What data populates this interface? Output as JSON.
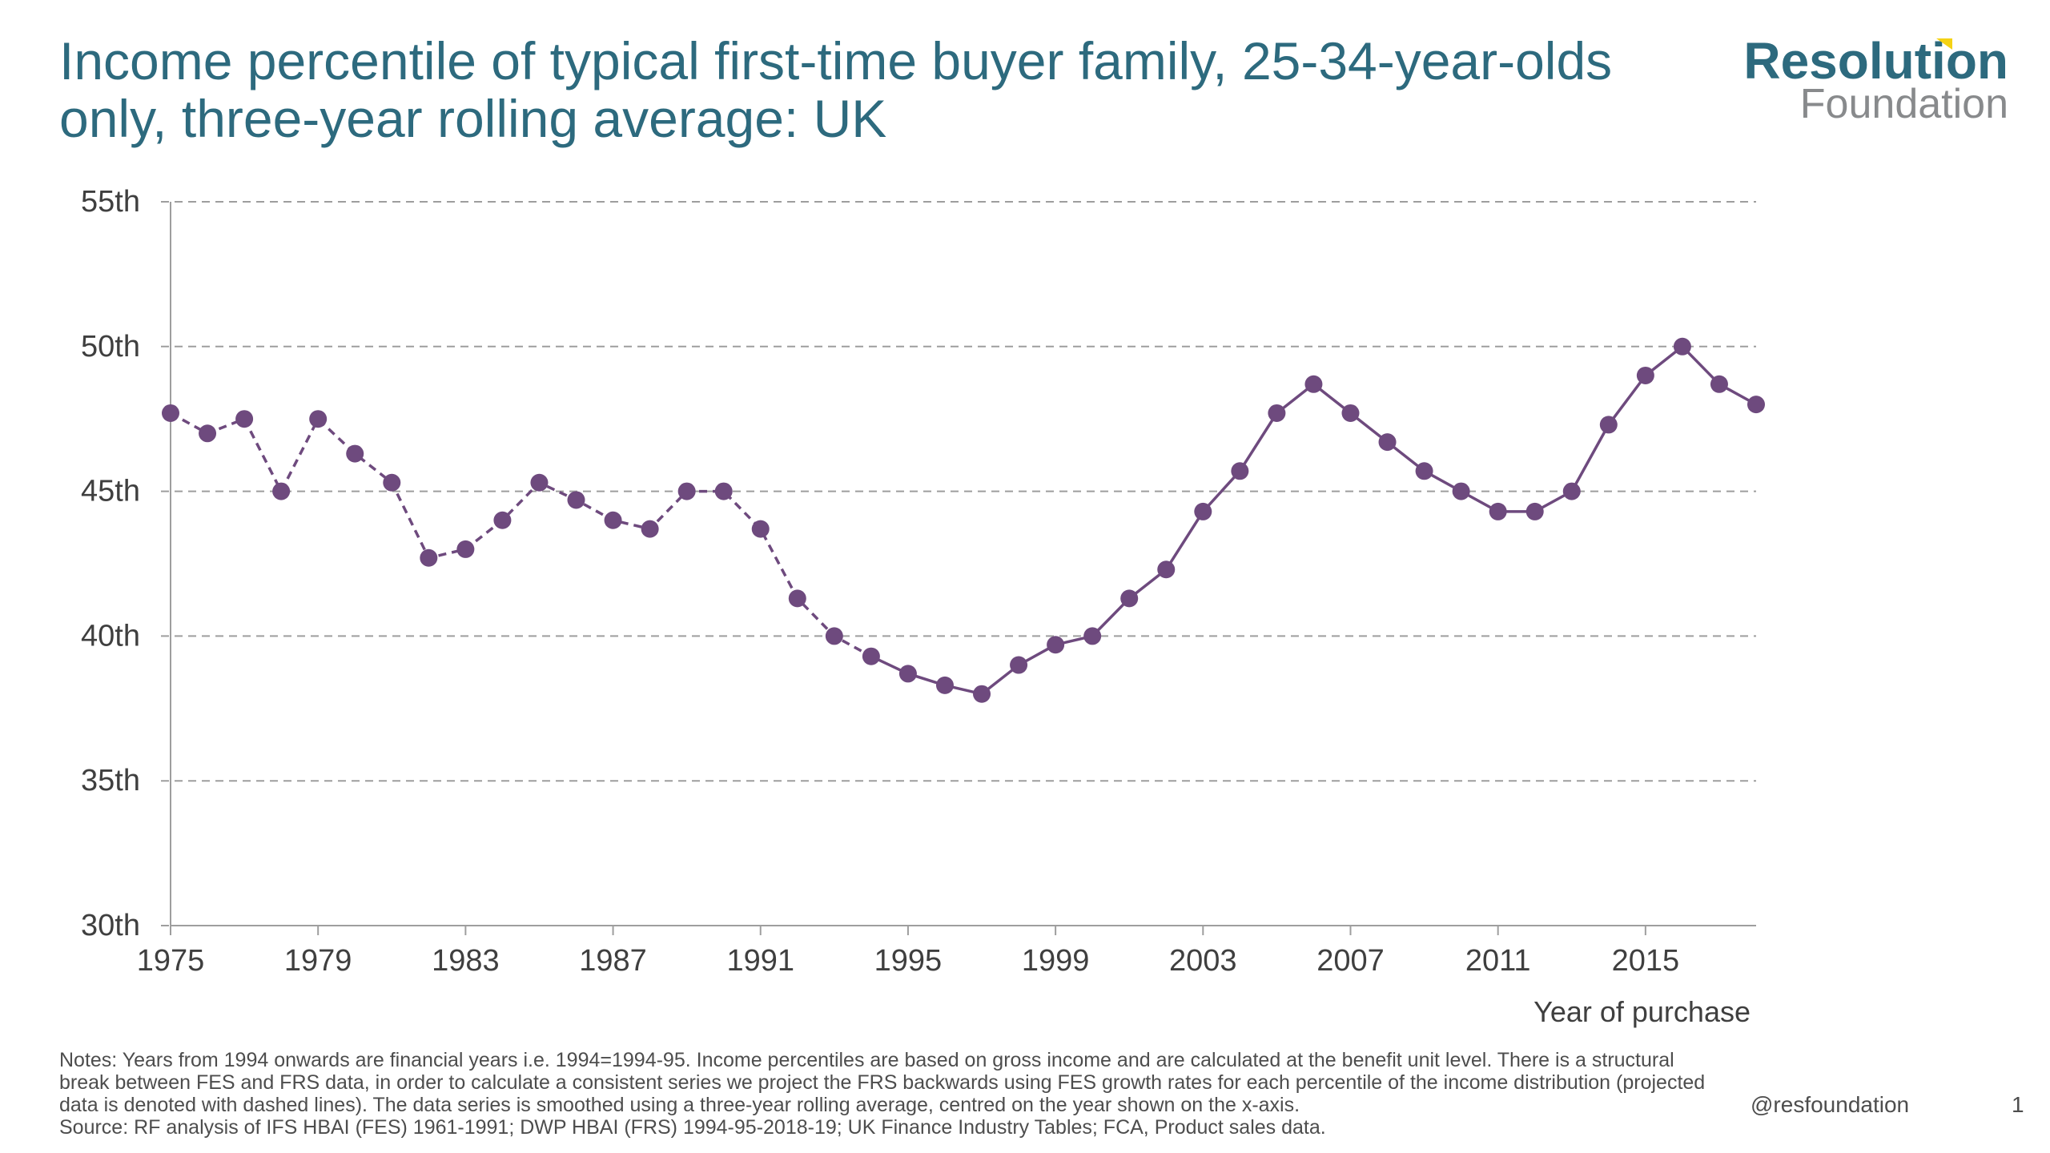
{
  "header": {
    "title": "Income percentile of typical first-time buyer family, 25-34-year-olds only, three-year rolling average: UK"
  },
  "logo": {
    "line1": "Resolution",
    "line2": "Foundation",
    "accent_color": "#f5d214",
    "brand_color": "#2d6a7e"
  },
  "footer": {
    "notes": "Notes: Years from 1994 onwards are financial years i.e. 1994=1994-95. Income percentiles are based on gross income and are calculated at the benefit unit level. There is a structural break between FES and FRS data, in order to calculate a consistent series we project the FRS backwards using FES growth rates for each percentile of the income distribution (projected data is denoted with dashed lines). The data series is smoothed using a three-year rolling average, centred on the year shown on the x-axis.",
    "source": "Source: RF analysis of IFS HBAI (FES) 1961-1991; DWP HBAI (FRS) 1994-95-2018-19; UK Finance Industry Tables; FCA, Product sales data.",
    "handle": "@resfoundation",
    "page_number": "1"
  },
  "chart_data": {
    "type": "line",
    "title": "Income percentile of typical first-time buyer family, 25-34-year-olds only, three-year rolling average: UK",
    "xlabel": "Year of purchase",
    "ylabel": "",
    "xlim": [
      1975,
      2018
    ],
    "ylim": [
      30,
      55
    ],
    "x_ticks": [
      1975,
      1979,
      1983,
      1987,
      1991,
      1995,
      1999,
      2003,
      2007,
      2011,
      2015
    ],
    "x_tick_labels": [
      "1975",
      "1979",
      "1983",
      "1987",
      "1991",
      "1995",
      "1999",
      "2003",
      "2007",
      "2011",
      "2015"
    ],
    "y_ticks": [
      30,
      35,
      40,
      45,
      50,
      55
    ],
    "y_tick_labels": [
      "30th",
      "35th",
      "40th",
      "45th",
      "50th",
      "55th"
    ],
    "grid": "horizontal dashed",
    "series_color": "#6e4a7e",
    "series": [
      {
        "style": "dashed",
        "x": [
          1975,
          1976,
          1977,
          1978,
          1979,
          1980,
          1981,
          1982,
          1983,
          1984,
          1985,
          1986,
          1987,
          1988,
          1989,
          1990,
          1991,
          1992,
          1993,
          1994
        ],
        "values": [
          47.7,
          47.0,
          47.5,
          45.0,
          47.5,
          46.3,
          45.3,
          42.7,
          43.0,
          44.0,
          45.3,
          44.7,
          44.0,
          43.7,
          45.0,
          45.0,
          43.7,
          41.3,
          40.0,
          39.3
        ]
      },
      {
        "style": "solid",
        "x": [
          1994,
          1995,
          1996,
          1997,
          1998,
          1999,
          2000,
          2001,
          2002,
          2003,
          2004,
          2005,
          2006,
          2007,
          2008,
          2009,
          2010,
          2011,
          2012,
          2013,
          2014,
          2015,
          2016,
          2017,
          2018
        ],
        "values": [
          39.3,
          38.7,
          38.3,
          38.0,
          39.0,
          39.7,
          40.0,
          41.3,
          42.3,
          44.3,
          45.7,
          47.7,
          48.7,
          47.7,
          46.7,
          45.7,
          45.0,
          44.3,
          44.3,
          45.0,
          47.3,
          49.0,
          50.0,
          48.7,
          48.0
        ]
      }
    ]
  }
}
